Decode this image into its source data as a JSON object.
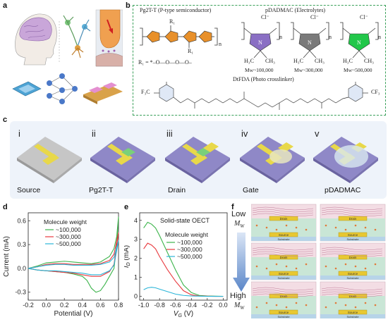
{
  "panels": {
    "a": "a",
    "b": "b",
    "c": "c",
    "d": "d",
    "e": "e",
    "f": "f"
  },
  "panel_b": {
    "pg2tt_title": "Pg2T-T (P-type semiconductor)",
    "pdadmac_title": "pDADMAC (Electrolytes)",
    "mw_labels": [
      "Mᴡ~100,000",
      "Mᴡ~300,000",
      "Mᴡ~500,000"
    ],
    "r1_def": "R₁ = *–O––O––O––O–",
    "dtfda_title": "DtFDA (Photo crosslinker)",
    "cf3_left": "F₃C",
    "cf3_right": "CF₃",
    "r1": "R₁",
    "n": "n",
    "cl": "Cl⁻",
    "h3c": "H₃C",
    "ch3": "CH₃",
    "n_plus": "N",
    "colors": {
      "orange": "#e8902a",
      "pdadmac_1": "#8a6fc4",
      "pdadmac_2": "#7a7a7a",
      "pdadmac_3": "#22c74a",
      "frame": "#3aa05a"
    }
  },
  "panel_c": {
    "steps": [
      {
        "num": "i",
        "name": "Source"
      },
      {
        "num": "ii",
        "name": "Pg2T-T"
      },
      {
        "num": "iii",
        "name": "Drain"
      },
      {
        "num": "iv",
        "name": "Gate"
      },
      {
        "num": "v",
        "name": "pDADMAC"
      }
    ],
    "colors": {
      "substrate": "#b8b8b8",
      "semiconductor": "#8f88c7",
      "electrode": "#e8d84a",
      "gate_film": "#a9d67a"
    }
  },
  "panel_e_label": "Solid-state OECT",
  "panel_f": {
    "low": "Low",
    "high": "High",
    "mw": "M",
    "mw_sub": "W",
    "drain": "Drain",
    "source": "Source",
    "substrate": "Substrate"
  },
  "chart_data": [
    {
      "type": "line",
      "panel": "d",
      "xlabel": "Potential (V)",
      "ylabel": "Current (mA)",
      "xlim": [
        -0.2,
        0.8
      ],
      "ylim": [
        -0.4,
        0.7
      ],
      "xticks": [
        "-0.2",
        "0.0",
        "0.2",
        "0.4",
        "0.6",
        "0.8"
      ],
      "yticks": [
        "-0.3",
        "0.0",
        "0.3",
        "0.6"
      ],
      "legend_title": "Molecule weight",
      "series": [
        {
          "name": "~100,000",
          "color": "#3cb44b",
          "x": [
            -0.2,
            -0.1,
            0.0,
            0.1,
            0.2,
            0.3,
            0.4,
            0.5,
            0.6,
            0.7,
            0.75,
            0.78,
            0.8,
            0.78,
            0.75,
            0.7,
            0.65,
            0.6,
            0.55,
            0.5,
            0.45,
            0.4,
            0.3,
            0.2,
            0.1,
            0.0,
            -0.1,
            -0.2
          ],
          "y": [
            0.0,
            0.03,
            0.07,
            0.08,
            0.09,
            0.08,
            0.07,
            0.06,
            0.08,
            0.15,
            0.25,
            0.4,
            0.65,
            0.3,
            0.0,
            -0.1,
            -0.2,
            -0.28,
            -0.3,
            -0.25,
            -0.15,
            -0.1,
            -0.07,
            -0.05,
            -0.04,
            -0.03,
            -0.02,
            0.0
          ]
        },
        {
          "name": "~300,000",
          "color": "#e8383d",
          "x": [
            -0.2,
            -0.1,
            0.0,
            0.1,
            0.2,
            0.3,
            0.4,
            0.5,
            0.6,
            0.7,
            0.75,
            0.8,
            0.75,
            0.7,
            0.6,
            0.5,
            0.4,
            0.3,
            0.2,
            0.1,
            0.0,
            -0.1,
            -0.2
          ],
          "y": [
            0.0,
            0.02,
            0.05,
            0.06,
            0.06,
            0.05,
            0.05,
            0.05,
            0.06,
            0.1,
            0.18,
            0.45,
            0.05,
            -0.04,
            -0.1,
            -0.1,
            -0.08,
            -0.06,
            -0.05,
            -0.04,
            -0.03,
            -0.02,
            0.0
          ]
        },
        {
          "name": "~500,000",
          "color": "#2bb5d8",
          "x": [
            -0.2,
            -0.1,
            0.0,
            0.1,
            0.2,
            0.3,
            0.4,
            0.5,
            0.6,
            0.7,
            0.75,
            0.8,
            0.75,
            0.7,
            0.6,
            0.5,
            0.4,
            0.3,
            0.2,
            0.1,
            0.0,
            -0.1,
            -0.2
          ],
          "y": [
            0.0,
            0.02,
            0.04,
            0.05,
            0.05,
            0.04,
            0.04,
            0.04,
            0.05,
            0.08,
            0.14,
            0.35,
            0.04,
            -0.03,
            -0.08,
            -0.08,
            -0.06,
            -0.05,
            -0.04,
            -0.03,
            -0.03,
            -0.02,
            0.0
          ]
        }
      ]
    },
    {
      "type": "line",
      "panel": "e",
      "xlabel": "V_G (V)",
      "ylabel": "I_D (mA)",
      "xlim": [
        -1.05,
        0.05
      ],
      "ylim": [
        -0.2,
        4.4
      ],
      "xticks": [
        "-1.0",
        "-0.8",
        "-0.6",
        "-0.4",
        "-0.2",
        "0.0"
      ],
      "yticks": [
        "0",
        "1",
        "2",
        "3",
        "4"
      ],
      "legend_title": "Molecule weight",
      "series": [
        {
          "name": "~100,000",
          "color": "#3cb44b",
          "x": [
            -1.0,
            -0.95,
            -0.9,
            -0.85,
            -0.8,
            -0.7,
            -0.6,
            -0.5,
            -0.4,
            -0.3,
            -0.2,
            -0.1,
            0.0
          ],
          "y": [
            3.6,
            3.9,
            3.8,
            3.6,
            3.2,
            2.3,
            1.4,
            0.6,
            0.2,
            0.05,
            0.02,
            0.01,
            0.0
          ]
        },
        {
          "name": "~300,000",
          "color": "#e8383d",
          "x": [
            -1.0,
            -0.95,
            -0.9,
            -0.85,
            -0.8,
            -0.7,
            -0.6,
            -0.5,
            -0.4,
            -0.3,
            -0.2,
            -0.1,
            0.0
          ],
          "y": [
            2.5,
            2.8,
            2.7,
            2.5,
            2.1,
            1.4,
            0.8,
            0.3,
            0.08,
            0.02,
            0.01,
            0.0,
            0.0
          ]
        },
        {
          "name": "~500,000",
          "color": "#2bb5d8",
          "x": [
            -1.0,
            -0.95,
            -0.9,
            -0.85,
            -0.8,
            -0.7,
            -0.6,
            -0.5,
            -0.4,
            -0.3,
            -0.2,
            -0.1,
            0.0
          ],
          "y": [
            0.35,
            0.45,
            0.48,
            0.45,
            0.38,
            0.25,
            0.12,
            0.05,
            0.02,
            0.01,
            0.0,
            0.0,
            0.0
          ]
        }
      ]
    }
  ]
}
